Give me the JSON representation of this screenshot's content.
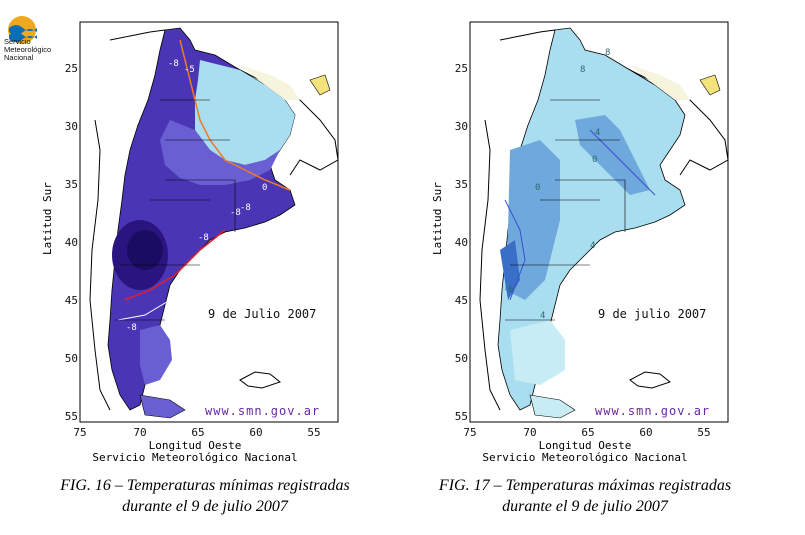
{
  "logo": {
    "line1": "Servicio",
    "line2": "Meteorológico",
    "line3": "Nacional"
  },
  "maps": [
    {
      "date_label": "9 de Julio 2007",
      "web": "www.smn.gov.ar",
      "x_title": "Longitud  Oeste",
      "source": "Servicio Meteorológico Nacional",
      "y_title": "Latitud  Sur",
      "x_ticks": [
        "75",
        "70",
        "65",
        "60",
        "55"
      ],
      "y_ticks": [
        "25",
        "30",
        "35",
        "40",
        "45",
        "50",
        "55"
      ],
      "caption_line1": "FIG. 16 – Temperaturas mínimas registradas",
      "caption_line2": "durante el 9 de julio 2007",
      "contour_labels": [
        "-8",
        "-5",
        "0",
        "-8",
        "-8",
        "-8",
        "-8"
      ]
    },
    {
      "date_label": "9 de julio 2007",
      "web": "www.smn.gov.ar",
      "x_title": "Longitud  Oeste",
      "source": "Servicio Meteorológico Nacional",
      "y_title": "Latitud  Sur",
      "x_ticks": [
        "75",
        "70",
        "65",
        "60",
        "55"
      ],
      "y_ticks": [
        "25",
        "30",
        "35",
        "40",
        "45",
        "50",
        "55"
      ],
      "caption_line1": "FIG. 17 – Temperaturas máximas registradas",
      "caption_line2": "durante el 9 de julio 2007",
      "contour_labels": [
        "8",
        "8",
        "4",
        "0",
        "0",
        "4",
        "0",
        "4"
      ]
    }
  ],
  "colors": {
    "deep_purple": "#3a1f9a",
    "purple": "#5b40c0",
    "blue_violet": "#6a5fd2",
    "light_blue": "#a8def0",
    "pale_blue": "#c8ecf4",
    "cream": "#f6f4dc",
    "yellow": "#f4e27a",
    "isoline_red": "#e0202a",
    "isoline_orange": "#f07a2a"
  }
}
